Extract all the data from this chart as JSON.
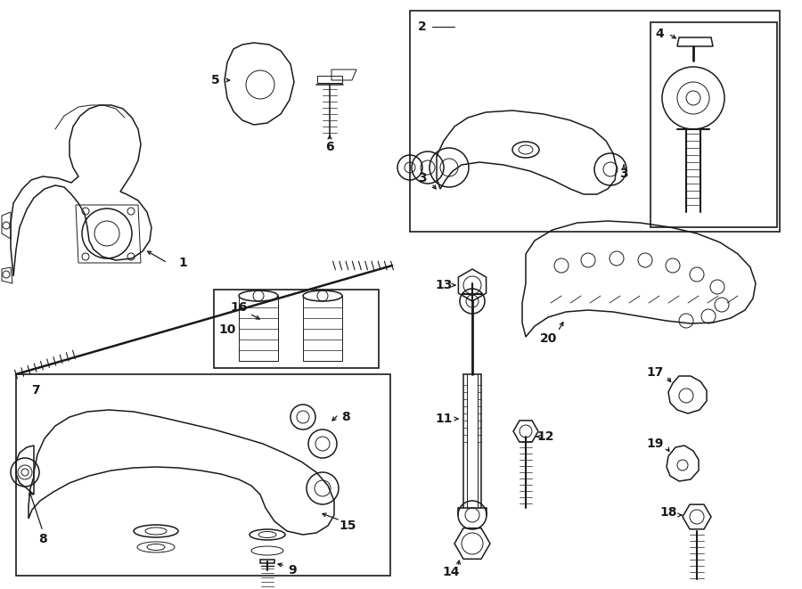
{
  "bg_color": "#ffffff",
  "line_color": "#1a1a1a",
  "fig_width": 9.0,
  "fig_height": 6.61,
  "dpi": 100,
  "border_lw": 1.2,
  "part_lw": 1.1,
  "thin_lw": 0.7,
  "label_fontsize": 10,
  "label_fontsize_sm": 9
}
